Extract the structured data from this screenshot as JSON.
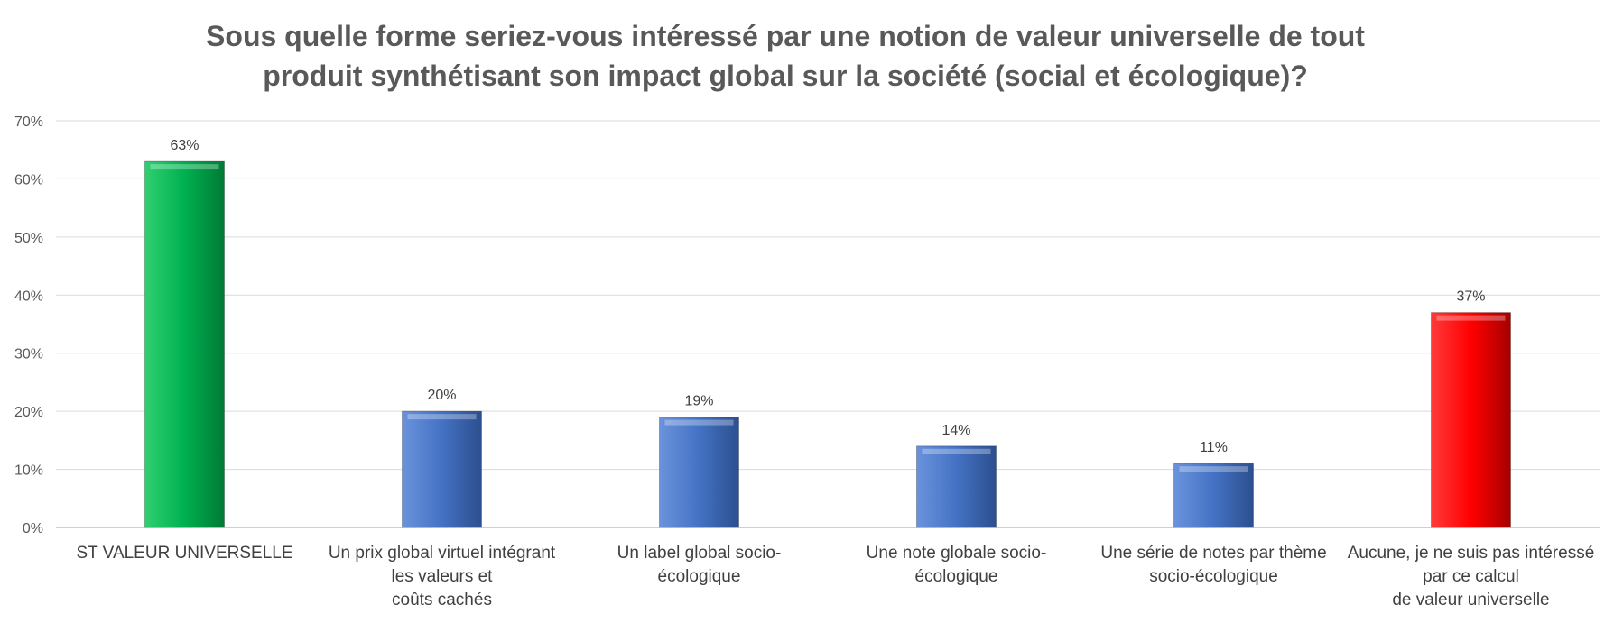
{
  "chart_data": {
    "type": "bar",
    "title_lines": [
      "Sous quelle forme seriez-vous intéressé par une notion de valeur universelle de tout",
      "produit synthétisant son impact global sur la société (social et écologique)?"
    ],
    "categories": [
      [
        "ST VALEUR UNIVERSELLE"
      ],
      [
        "Un prix global virtuel intégrant",
        "les valeurs et",
        "coûts cachés"
      ],
      [
        "Un label global socio-",
        "écologique"
      ],
      [
        "Une note globale socio-",
        "écologique"
      ],
      [
        "Une série de notes par thème",
        "socio-écologique"
      ],
      [
        "Aucune, je ne suis pas intéressé",
        "par ce calcul",
        "de valeur universelle"
      ]
    ],
    "values": [
      63,
      20,
      19,
      14,
      11,
      37
    ],
    "data_labels": [
      "63%",
      "20%",
      "19%",
      "14%",
      "11%",
      "37%"
    ],
    "bar_colors": [
      "#00B050",
      "#4472C4",
      "#4472C4",
      "#4472C4",
      "#4472C4",
      "#FF0000"
    ],
    "ylim": [
      0,
      70
    ],
    "yticks": [
      0,
      10,
      20,
      30,
      40,
      50,
      60,
      70
    ],
    "ytick_labels": [
      "0%",
      "10%",
      "20%",
      "30%",
      "40%",
      "50%",
      "60%",
      "70%"
    ],
    "grid": true,
    "legend": "none"
  }
}
